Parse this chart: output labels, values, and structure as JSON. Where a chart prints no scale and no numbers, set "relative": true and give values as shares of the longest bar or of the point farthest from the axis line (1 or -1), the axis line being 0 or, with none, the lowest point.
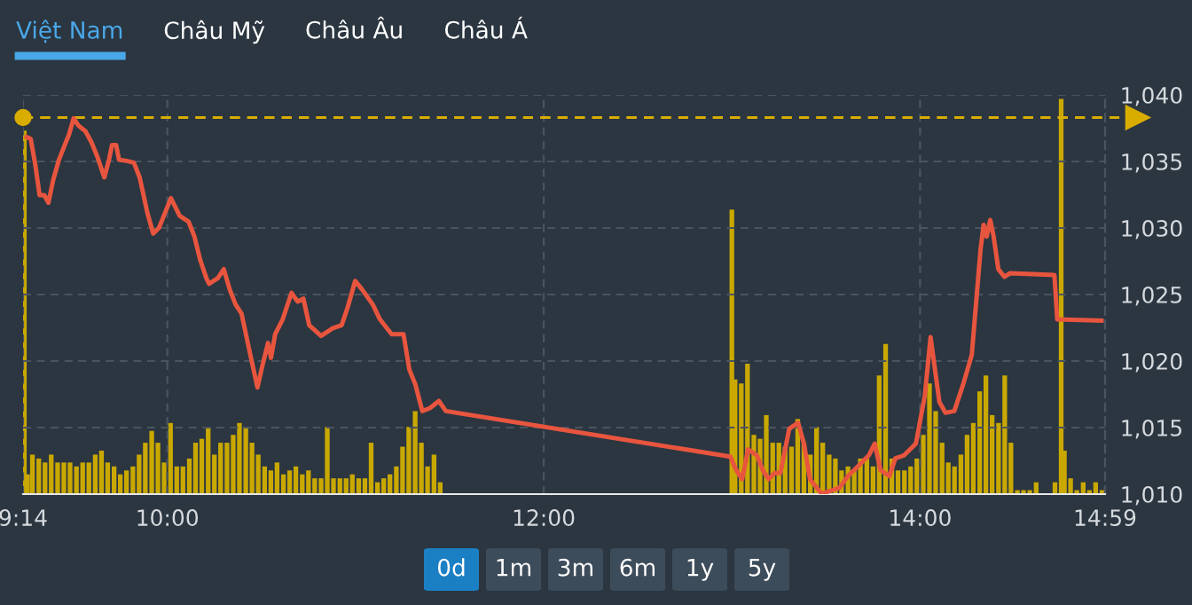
{
  "chart_data": [
    {
      "type": "line",
      "annotations": [
        "Việt Nam",
        "Châu Mỹ",
        "Châu Âu",
        "Châu Á"
      ],
      "xlim": [
        9.2333,
        14.9833
      ],
      "xticks": [
        {
          "value": 9.2333,
          "label": "9:14"
        },
        {
          "value": 10,
          "label": "10:00"
        },
        {
          "value": 12,
          "label": "12:00"
        },
        {
          "value": 14,
          "label": "14:00"
        },
        {
          "value": 14.9833,
          "label": "14:59"
        }
      ],
      "ylim": [
        1010,
        1040
      ],
      "yticks": [
        {
          "value": 1010,
          "label": "1,010"
        },
        {
          "value": 1015,
          "label": "1,015"
        },
        {
          "value": 1020,
          "label": "1,020"
        },
        {
          "value": 1025,
          "label": "1,025"
        },
        {
          "value": 1030,
          "label": "1,030"
        },
        {
          "value": 1035,
          "label": "1,035"
        },
        {
          "value": 1040,
          "label": "1,040"
        }
      ],
      "grid": true,
      "legend": false,
      "marker": "none",
      "line_style": "solid",
      "ref_lines": [
        {
          "axis": "y",
          "value": 1038.3,
          "color": "#d9ad00",
          "line_style": "dashed"
        }
      ],
      "series": [
        {
          "color": "#e8553e",
          "x": [
            9.252,
            9.274,
            9.299,
            9.321,
            9.346,
            9.368,
            9.393,
            9.424,
            9.455,
            9.477,
            9.502,
            9.527,
            9.565,
            9.596,
            9.628,
            9.665,
            9.69,
            9.706,
            9.728,
            9.743,
            9.784,
            9.822,
            9.853,
            9.894,
            9.925,
            9.956,
            10.019,
            10.066,
            10.113,
            10.144,
            10.175,
            10.207,
            10.222,
            10.269,
            10.3,
            10.332,
            10.363,
            10.394,
            10.441,
            10.479,
            10.504,
            10.535,
            10.551,
            10.573,
            10.613,
            10.66,
            10.692,
            10.723,
            10.754,
            10.817,
            10.88,
            10.926,
            10.958,
            10.998,
            11.036,
            11.092,
            11.13,
            11.192,
            11.255,
            11.286,
            11.318,
            11.355,
            11.396,
            11.443,
            11.48,
            12.992,
            13.023,
            13.055,
            13.086,
            13.133,
            13.164,
            13.196,
            13.227,
            13.258,
            13.305,
            13.352,
            13.383,
            13.415,
            13.477,
            13.54,
            13.571,
            13.618,
            13.665,
            13.728,
            13.759,
            13.79,
            13.837,
            13.869,
            13.915,
            13.978,
            14.025,
            14.056,
            14.103,
            14.135,
            14.182,
            14.229,
            14.275,
            14.322,
            14.338,
            14.354,
            14.373,
            14.391,
            14.416,
            14.448,
            14.479,
            14.714,
            14.729,
            14.964
          ],
          "values": [
            1036.83,
            1036.69,
            1034.69,
            1032.47,
            1032.47,
            1031.89,
            1033.58,
            1035.13,
            1036.24,
            1037.0,
            1038.24,
            1037.71,
            1037.27,
            1036.47,
            1035.36,
            1033.8,
            1035.13,
            1036.24,
            1036.24,
            1035.13,
            1035.04,
            1034.91,
            1033.8,
            1031.13,
            1029.58,
            1030.02,
            1032.24,
            1030.91,
            1030.47,
            1029.36,
            1027.58,
            1026.24,
            1025.8,
            1026.24,
            1026.91,
            1025.36,
            1024.24,
            1023.58,
            1020.47,
            1018.02,
            1019.58,
            1021.36,
            1020.24,
            1022.02,
            1023.13,
            1025.13,
            1024.47,
            1024.69,
            1022.69,
            1021.89,
            1022.47,
            1022.69,
            1024.02,
            1026.02,
            1025.36,
            1024.24,
            1023.13,
            1022.02,
            1022.02,
            1019.36,
            1018.24,
            1016.24,
            1016.47,
            1017.0,
            1016.24,
            1012.82,
            1011.8,
            1011.13,
            1013.36,
            1012.91,
            1011.8,
            1011.13,
            1011.58,
            1011.58,
            1014.91,
            1015.36,
            1013.8,
            1011.13,
            1010.02,
            1010.33,
            1010.47,
            1011.36,
            1012.02,
            1012.91,
            1013.8,
            1011.8,
            1011.36,
            1012.69,
            1012.91,
            1013.8,
            1017.36,
            1021.8,
            1016.91,
            1016.11,
            1016.24,
            1018.24,
            1020.47,
            1028.47,
            1030.24,
            1029.36,
            1030.6,
            1029.36,
            1026.91,
            1026.33,
            1026.6,
            1026.47,
            1023.13,
            1023.04
          ]
        }
      ]
    },
    {
      "type": "bar",
      "relative": true,
      "annotations": [
        "0d",
        "1m",
        "3m",
        "6m",
        "1y",
        "5y"
      ],
      "xlim": [
        9.2333,
        14.9833
      ],
      "tick_labels": false,
      "legend": false,
      "series": [
        {
          "color": "#c9a800",
          "x": [
            9.24,
            9.257,
            9.283,
            9.317,
            9.35,
            9.383,
            9.417,
            9.45,
            9.483,
            9.517,
            9.55,
            9.583,
            9.617,
            9.65,
            9.683,
            9.717,
            9.75,
            9.783,
            9.817,
            9.85,
            9.883,
            9.917,
            9.95,
            9.983,
            10.017,
            10.05,
            10.083,
            10.117,
            10.15,
            10.183,
            10.217,
            10.25,
            10.283,
            10.317,
            10.35,
            10.383,
            10.417,
            10.45,
            10.483,
            10.517,
            10.55,
            10.583,
            10.617,
            10.65,
            10.683,
            10.717,
            10.75,
            10.783,
            10.817,
            10.85,
            10.883,
            10.917,
            10.95,
            10.983,
            11.017,
            11.05,
            11.083,
            11.117,
            11.15,
            11.183,
            11.217,
            11.25,
            11.283,
            11.317,
            11.35,
            11.383,
            11.417,
            11.45,
            13.0,
            13.017,
            13.05,
            13.083,
            13.117,
            13.15,
            13.183,
            13.217,
            13.25,
            13.283,
            13.317,
            13.35,
            13.383,
            13.417,
            13.45,
            13.483,
            13.517,
            13.55,
            13.583,
            13.617,
            13.65,
            13.683,
            13.717,
            13.75,
            13.783,
            13.817,
            13.85,
            13.883,
            13.917,
            13.95,
            13.983,
            14.017,
            14.05,
            14.083,
            14.117,
            14.15,
            14.183,
            14.217,
            14.25,
            14.283,
            14.317,
            14.35,
            14.383,
            14.417,
            14.45,
            14.483,
            14.517,
            14.55,
            14.583,
            14.617,
            14.717,
            14.75,
            14.767,
            14.8,
            14.833,
            14.867,
            14.9,
            14.933,
            14.967
          ],
          "values": [
            0.92,
            0.05,
            0.1,
            0.09,
            0.08,
            0.1,
            0.08,
            0.08,
            0.08,
            0.07,
            0.08,
            0.08,
            0.1,
            0.11,
            0.08,
            0.07,
            0.05,
            0.06,
            0.07,
            0.1,
            0.13,
            0.16,
            0.13,
            0.08,
            0.18,
            0.07,
            0.07,
            0.09,
            0.13,
            0.14,
            0.17,
            0.1,
            0.13,
            0.13,
            0.15,
            0.18,
            0.17,
            0.13,
            0.1,
            0.07,
            0.06,
            0.08,
            0.05,
            0.06,
            0.07,
            0.05,
            0.06,
            0.04,
            0.04,
            0.17,
            0.04,
            0.04,
            0.04,
            0.05,
            0.04,
            0.04,
            0.13,
            0.03,
            0.04,
            0.05,
            0.07,
            0.12,
            0.17,
            0.21,
            0.13,
            0.07,
            0.1,
            0.03,
            0.72,
            0.29,
            0.28,
            0.33,
            0.15,
            0.14,
            0.2,
            0.13,
            0.13,
            0.12,
            0.12,
            0.19,
            0.13,
            0.1,
            0.17,
            0.13,
            0.1,
            0.09,
            0.06,
            0.07,
            0.06,
            0.09,
            0.09,
            0.07,
            0.3,
            0.38,
            0.09,
            0.06,
            0.06,
            0.07,
            0.09,
            0.15,
            0.28,
            0.21,
            0.13,
            0.08,
            0.07,
            0.1,
            0.15,
            0.18,
            0.26,
            0.3,
            0.2,
            0.18,
            0.3,
            0.13,
            0.01,
            0.01,
            0.01,
            0.03,
            0.03,
            1.0,
            0.11,
            0.04,
            0.01,
            0.03,
            0.01,
            0.03,
            0.01
          ]
        }
      ]
    }
  ]
}
